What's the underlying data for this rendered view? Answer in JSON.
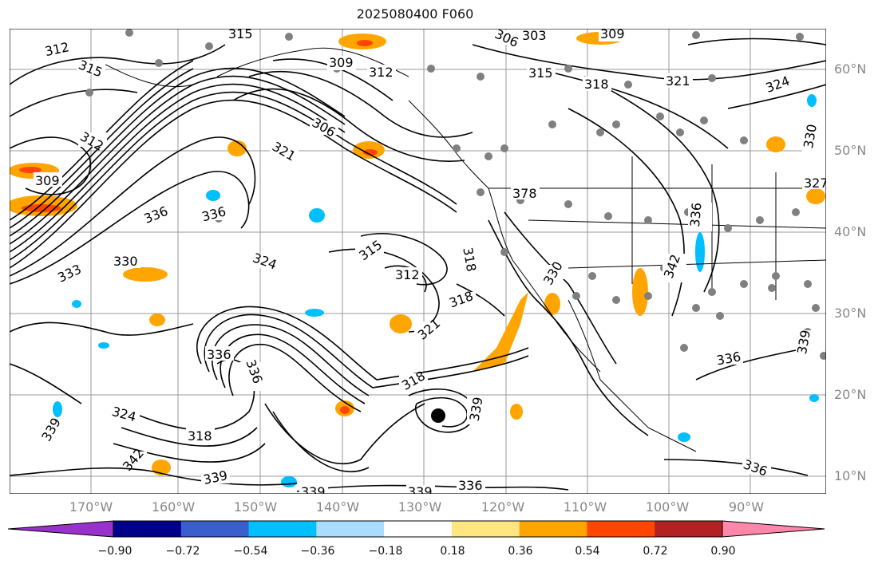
{
  "title": "2025080400 F060",
  "lat_labels": [
    "60°N",
    "50°N",
    "40°N",
    "30°N",
    "20°N",
    "10°N"
  ],
  "lon_labels": [
    "170°W",
    "160°W",
    "150°W",
    "140°W",
    "130°W",
    "120°W",
    "110°W",
    "100°W",
    "90°W"
  ],
  "contour_labels": [
    "312",
    "315",
    "315",
    "309",
    "312",
    "306",
    "303",
    "309",
    "315",
    "318",
    "321",
    "324",
    "312",
    "306",
    "321",
    "309",
    "336",
    "336",
    "330",
    "324",
    "315",
    "312",
    "318",
    "318",
    "321",
    "333",
    "336",
    "318",
    "339",
    "324",
    "318",
    "339",
    "339",
    "336",
    "339",
    "336",
    "342",
    "339",
    "378",
    "330",
    "342",
    "339",
    "336",
    "336",
    "336",
    "330",
    "327"
  ],
  "colorbar": {
    "tick_labels": [
      "−0.90",
      "−0.72",
      "−0.54",
      "−0.36",
      "−0.18",
      "0.18",
      "0.36",
      "0.54",
      "0.72",
      "0.90"
    ],
    "colors": [
      "#9932cc",
      "#00008b",
      "#3a5fcd",
      "#00bfff",
      "#aadcff",
      "#ffffff",
      "#ffe680",
      "#ffa500",
      "#ff4500",
      "#b22222",
      "#ff88aa"
    ]
  }
}
